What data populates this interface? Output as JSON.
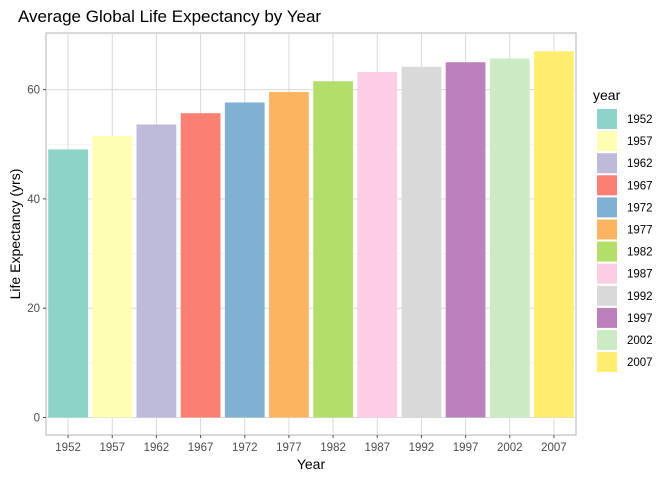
{
  "chart_data": {
    "type": "bar",
    "title": "Average Global Life Expectancy by Year",
    "xlabel": "Year",
    "ylabel": "Life Expectancy (yrs)",
    "categories": [
      "1952",
      "1957",
      "1962",
      "1967",
      "1972",
      "1977",
      "1982",
      "1987",
      "1992",
      "1997",
      "2002",
      "2007"
    ],
    "values": [
      49.06,
      51.51,
      53.61,
      55.68,
      57.65,
      59.57,
      61.53,
      63.21,
      64.16,
      65.01,
      65.69,
      67.01
    ],
    "ylim": [
      0,
      70
    ],
    "yticks": [
      "0",
      "20",
      "40",
      "60"
    ],
    "grid": true,
    "legend": {
      "title": "year",
      "position": "right",
      "entries": [
        "1952",
        "1957",
        "1962",
        "1967",
        "1972",
        "1977",
        "1982",
        "1987",
        "1992",
        "1997",
        "2002",
        "2007"
      ]
    },
    "colors": [
      "#8dd3c7",
      "#ffffb3",
      "#bebada",
      "#fb8072",
      "#80b1d3",
      "#fdb462",
      "#b3de69",
      "#fccde5",
      "#d9d9d9",
      "#bc80bd",
      "#ccebc5",
      "#ffed6f"
    ]
  }
}
